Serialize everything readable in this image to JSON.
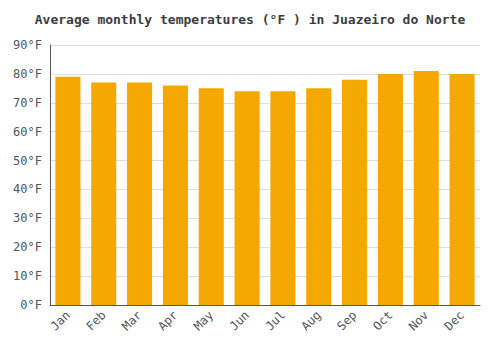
{
  "chart_data": {
    "type": "bar",
    "title": "Average monthly temperatures (°F ) in Juazeiro do Norte",
    "categories": [
      "Jan",
      "Feb",
      "Mar",
      "Apr",
      "May",
      "Jun",
      "Jul",
      "Aug",
      "Sep",
      "Oct",
      "Nov",
      "Dec"
    ],
    "values": [
      79,
      77,
      77,
      76,
      75,
      74,
      74,
      75,
      78,
      80,
      81,
      80
    ],
    "color": "#F5A800",
    "ylim": [
      0,
      90
    ],
    "yticks": [
      {
        "value": 0,
        "label": "0°F"
      },
      {
        "value": 10,
        "label": "10°F"
      },
      {
        "value": 20,
        "label": "20°F"
      },
      {
        "value": 30,
        "label": "30°F"
      },
      {
        "value": 40,
        "label": "40°F"
      },
      {
        "value": 50,
        "label": "50°F"
      },
      {
        "value": 60,
        "label": "60°F"
      },
      {
        "value": 70,
        "label": "70°F"
      },
      {
        "value": 80,
        "label": "80°F"
      },
      {
        "value": 90,
        "label": "90°F"
      }
    ],
    "grid": true
  }
}
